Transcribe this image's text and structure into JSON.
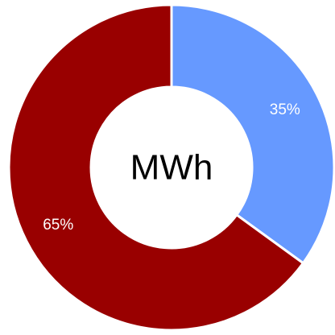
{
  "chart_data": {
    "type": "pie",
    "variant": "donut",
    "center_label": "MWh",
    "categories": [
      "",
      ""
    ],
    "values": [
      35,
      65
    ],
    "value_labels": [
      "35%",
      "65%"
    ],
    "colors": [
      "#6699ff",
      "#990000"
    ],
    "start": "top",
    "direction": "clockwise",
    "legend": "none"
  }
}
